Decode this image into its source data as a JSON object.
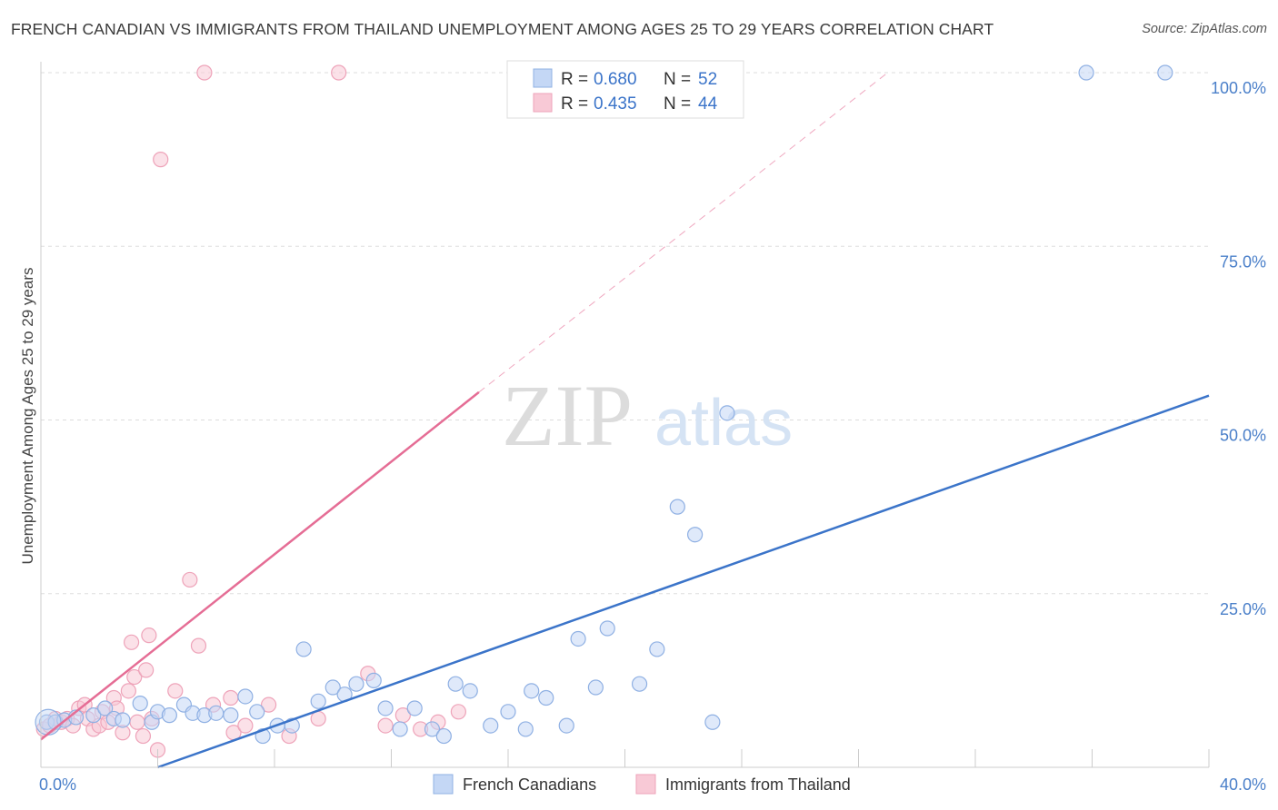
{
  "title": "FRENCH CANADIAN VS IMMIGRANTS FROM THAILAND UNEMPLOYMENT AMONG AGES 25 TO 29 YEARS CORRELATION CHART",
  "source": "Source: ZipAtlas.com",
  "watermark": {
    "zip": "ZIP",
    "atlas": "atlas"
  },
  "colors": {
    "blue": "#3b74c9",
    "blue_fill": "#c4d7f5",
    "pink": "#e56d95",
    "pink_fill": "#f8c9d6",
    "grid": "#dddddd",
    "tick_text": "#4a7fc9"
  },
  "legend": {
    "series1": {
      "r_label": "R =",
      "r_value": "0.680",
      "n_label": "N =",
      "n_value": "52"
    },
    "series2": {
      "r_label": "R =",
      "r_value": "0.435",
      "n_label": "N =",
      "n_value": "44"
    }
  },
  "chart_data": {
    "type": "scatter",
    "title": "FRENCH CANADIAN VS IMMIGRANTS FROM THAILAND UNEMPLOYMENT AMONG AGES 25 TO 29 YEARS CORRELATION CHART",
    "xlabel": "",
    "ylabel": "Unemployment Among Ages 25 to 29 years",
    "xlim": [
      0,
      40
    ],
    "ylim": [
      0,
      100
    ],
    "x_tick_labels": [
      "0.0%",
      "40.0%"
    ],
    "y_ticks": [
      25,
      50,
      75,
      100
    ],
    "y_tick_labels": [
      "25.0%",
      "50.0%",
      "75.0%",
      "100.0%"
    ],
    "grid": true,
    "series": [
      {
        "name": "French Canadians",
        "color": "#3b74c9",
        "r": 0.68,
        "n": 52,
        "trendline": {
          "x": [
            4.0,
            40.0
          ],
          "y": [
            0.0,
            53.5
          ],
          "style": "solid"
        },
        "points": [
          [
            0.2,
            6.5
          ],
          [
            0.5,
            6.5
          ],
          [
            0.8,
            6.8
          ],
          [
            1.2,
            7.2
          ],
          [
            1.8,
            7.5
          ],
          [
            2.2,
            8.5
          ],
          [
            2.5,
            7.0
          ],
          [
            2.8,
            6.8
          ],
          [
            3.4,
            9.2
          ],
          [
            3.8,
            6.5
          ],
          [
            4.0,
            8.0
          ],
          [
            4.4,
            7.5
          ],
          [
            4.9,
            9.0
          ],
          [
            5.2,
            7.8
          ],
          [
            5.6,
            7.5
          ],
          [
            6.0,
            7.8
          ],
          [
            6.5,
            7.5
          ],
          [
            7.0,
            10.2
          ],
          [
            7.4,
            8.0
          ],
          [
            7.6,
            4.5
          ],
          [
            8.1,
            6.0
          ],
          [
            8.6,
            6.0
          ],
          [
            9.0,
            17.0
          ],
          [
            9.5,
            9.5
          ],
          [
            10.0,
            11.5
          ],
          [
            10.4,
            10.5
          ],
          [
            10.8,
            12.0
          ],
          [
            11.4,
            12.5
          ],
          [
            11.8,
            8.5
          ],
          [
            12.3,
            5.5
          ],
          [
            12.8,
            8.5
          ],
          [
            13.4,
            5.5
          ],
          [
            13.8,
            4.5
          ],
          [
            14.2,
            12.0
          ],
          [
            14.7,
            11.0
          ],
          [
            15.4,
            6.0
          ],
          [
            16.0,
            8.0
          ],
          [
            16.6,
            5.5
          ],
          [
            16.8,
            11.0
          ],
          [
            17.3,
            10.0
          ],
          [
            18.0,
            6.0
          ],
          [
            18.4,
            18.5
          ],
          [
            19.0,
            11.5
          ],
          [
            19.4,
            20.0
          ],
          [
            20.5,
            12.0
          ],
          [
            21.1,
            17.0
          ],
          [
            21.8,
            37.5
          ],
          [
            22.4,
            33.5
          ],
          [
            23.0,
            6.5
          ],
          [
            23.5,
            51.0
          ],
          [
            35.8,
            100.0
          ],
          [
            38.5,
            100.0
          ]
        ]
      },
      {
        "name": "Immigrants from Thailand",
        "color": "#e56d95",
        "r": 0.435,
        "n": 44,
        "trendline": {
          "x": [
            0.0,
            15.0
          ],
          "y": [
            4.0,
            54.0
          ],
          "style": "solid",
          "extension_x": [
            15.0,
            29.0
          ],
          "extension_y": [
            54.0,
            100.0
          ],
          "extension_style": "dashed"
        },
        "points": [
          [
            0.1,
            5.5
          ],
          [
            0.3,
            6.0
          ],
          [
            0.5,
            7.0
          ],
          [
            0.7,
            6.5
          ],
          [
            0.9,
            7.0
          ],
          [
            1.1,
            6.0
          ],
          [
            1.3,
            8.5
          ],
          [
            1.5,
            9.0
          ],
          [
            1.6,
            7.0
          ],
          [
            1.8,
            5.5
          ],
          [
            2.0,
            6.0
          ],
          [
            2.1,
            8.0
          ],
          [
            2.3,
            6.5
          ],
          [
            2.5,
            10.0
          ],
          [
            2.6,
            8.5
          ],
          [
            2.8,
            5.0
          ],
          [
            3.0,
            11.0
          ],
          [
            3.1,
            18.0
          ],
          [
            3.2,
            13.0
          ],
          [
            3.3,
            6.5
          ],
          [
            3.5,
            4.5
          ],
          [
            3.6,
            14.0
          ],
          [
            3.7,
            19.0
          ],
          [
            3.8,
            7.0
          ],
          [
            4.0,
            2.5
          ],
          [
            4.1,
            87.5
          ],
          [
            4.6,
            11.0
          ],
          [
            5.1,
            27.0
          ],
          [
            5.4,
            17.5
          ],
          [
            5.6,
            100.0
          ],
          [
            5.9,
            9.0
          ],
          [
            6.5,
            10.0
          ],
          [
            6.6,
            5.0
          ],
          [
            7.0,
            6.0
          ],
          [
            7.8,
            9.0
          ],
          [
            8.5,
            4.5
          ],
          [
            9.5,
            7.0
          ],
          [
            10.2,
            100.0
          ],
          [
            11.2,
            13.5
          ],
          [
            11.8,
            6.0
          ],
          [
            12.4,
            7.5
          ],
          [
            13.0,
            5.5
          ],
          [
            13.6,
            6.5
          ],
          [
            14.3,
            8.0
          ]
        ]
      }
    ]
  }
}
